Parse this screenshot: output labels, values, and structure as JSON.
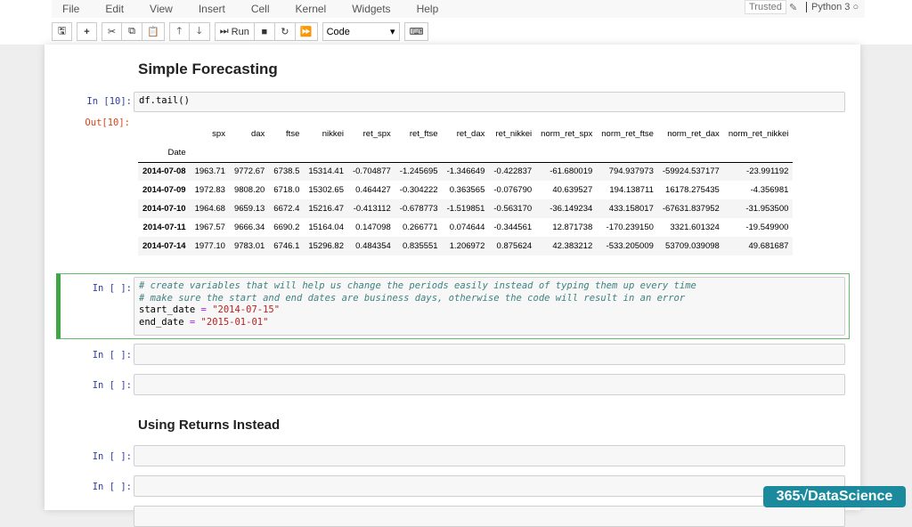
{
  "menu": [
    "File",
    "Edit",
    "View",
    "Insert",
    "Cell",
    "Kernel",
    "Widgets",
    "Help"
  ],
  "status": {
    "trusted": "Trusted",
    "kernel": "Python 3"
  },
  "toolbar": {
    "run": "Run",
    "cell_type": "Code"
  },
  "headings": {
    "h1": "Simple Forecasting",
    "h2": "Using Returns Instead"
  },
  "cells": {
    "in10_prompt": "In [10]:",
    "in10_code": "df.tail()",
    "out10_prompt": "Out[10]:",
    "empty_prompt": "In [ ]:"
  },
  "table": {
    "columns": [
      "spx",
      "dax",
      "ftse",
      "nikkei",
      "ret_spx",
      "ret_ftse",
      "ret_dax",
      "ret_nikkei",
      "norm_ret_spx",
      "norm_ret_ftse",
      "norm_ret_dax",
      "norm_ret_nikkei"
    ],
    "index_name": "Date",
    "rows": [
      [
        "2014-07-08",
        "1963.71",
        "9772.67",
        "6738.5",
        "15314.41",
        "-0.704877",
        "-1.245695",
        "-1.346649",
        "-0.422837",
        "-61.680019",
        "794.937973",
        "-59924.537177",
        "-23.991192"
      ],
      [
        "2014-07-09",
        "1972.83",
        "9808.20",
        "6718.0",
        "15302.65",
        "0.464427",
        "-0.304222",
        "0.363565",
        "-0.076790",
        "40.639527",
        "194.138711",
        "16178.275435",
        "-4.356981"
      ],
      [
        "2014-07-10",
        "1964.68",
        "9659.13",
        "6672.4",
        "15216.47",
        "-0.413112",
        "-0.678773",
        "-1.519851",
        "-0.563170",
        "-36.149234",
        "433.158017",
        "-67631.837952",
        "-31.953500"
      ],
      [
        "2014-07-11",
        "1967.57",
        "9666.34",
        "6690.2",
        "15164.04",
        "0.147098",
        "0.266771",
        "0.074644",
        "-0.344561",
        "12.871738",
        "-170.239150",
        "3321.601324",
        "-19.549900"
      ],
      [
        "2014-07-14",
        "1977.10",
        "9783.01",
        "6746.1",
        "15296.82",
        "0.484354",
        "0.835551",
        "1.206972",
        "0.875624",
        "42.383212",
        "-533.205009",
        "53709.039098",
        "49.681687"
      ]
    ]
  },
  "code": {
    "c1": "# create variables that will help us change the periods easily instead of typing them up every time",
    "c2": "# make sure the start and end dates are business days, otherwise the code will result in an error",
    "v1": "start_date",
    "v2": "end_date",
    "eq": " = ",
    "s1": "\"2014-07-15\"",
    "s2": "\"2015-01-01\""
  },
  "logo": "365√DataScience"
}
